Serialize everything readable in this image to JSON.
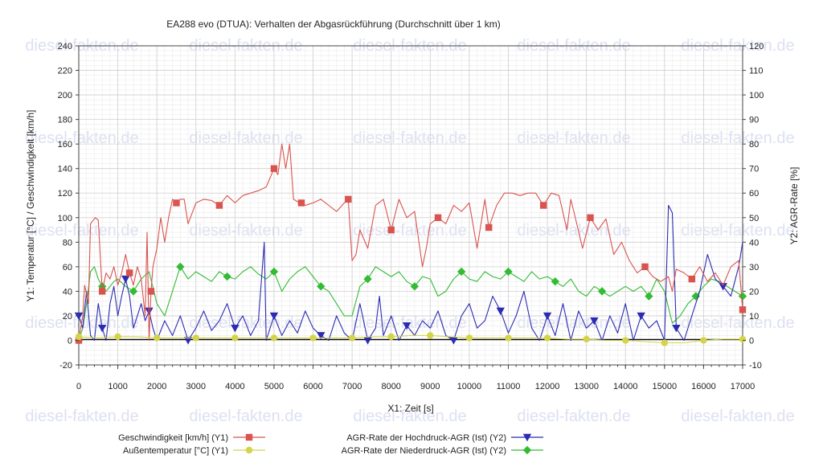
{
  "chart_data": {
    "type": "line",
    "title": "EA288 evo (DTUA): Verhalten der Abgasrückführung (Durchschnitt über 1 km)",
    "xlabel": "X1: Zeit [s]",
    "ylabel_left": "Y1: Temperatur [°C] / Geschwindigkeit [km/h]",
    "ylabel_right": "Y2: AGR-Rate [%]",
    "xlim": [
      0,
      17000
    ],
    "ylim_left": [
      -20,
      240
    ],
    "ylim_right": [
      -10,
      120
    ],
    "x_ticks": [
      0,
      1000,
      2000,
      3000,
      4000,
      5000,
      6000,
      7000,
      8000,
      9000,
      10000,
      11000,
      12000,
      13000,
      14000,
      15000,
      16000,
      17000
    ],
    "y_left_ticks": [
      -20,
      0,
      20,
      40,
      60,
      80,
      100,
      120,
      140,
      160,
      180,
      200,
      220,
      240
    ],
    "y_right_ticks": [
      -10,
      0,
      10,
      20,
      30,
      40,
      50,
      60,
      70,
      80,
      90,
      100,
      110,
      120
    ],
    "grid": true,
    "legend_position": "bottom",
    "watermark": "diesel-fakten.de",
    "series": [
      {
        "name": "Geschwindigkeit [km/h] (Y1)",
        "axis": "Y1",
        "color": "#d9534f",
        "marker": "square",
        "x": [
          0,
          100,
          150,
          250,
          300,
          420,
          500,
          600,
          700,
          800,
          900,
          1000,
          1100,
          1200,
          1300,
          1400,
          1500,
          1600,
          1700,
          1750,
          1800,
          1850,
          1900,
          2000,
          2100,
          2200,
          2300,
          2400,
          2500,
          2600,
          2700,
          2800,
          3000,
          3200,
          3400,
          3600,
          3800,
          4000,
          4200,
          4400,
          4600,
          4800,
          5000,
          5100,
          5200,
          5300,
          5400,
          5500,
          5600,
          5700,
          5800,
          6000,
          6200,
          6400,
          6600,
          6800,
          6900,
          7000,
          7100,
          7200,
          7400,
          7600,
          7800,
          8000,
          8200,
          8400,
          8600,
          8800,
          8900,
          9000,
          9200,
          9400,
          9600,
          9800,
          10000,
          10200,
          10400,
          10500,
          10700,
          10900,
          11100,
          11300,
          11500,
          11700,
          11900,
          12100,
          12300,
          12500,
          12600,
          12700,
          12900,
          13100,
          13300,
          13500,
          13700,
          13900,
          14100,
          14300,
          14500,
          14700,
          14900,
          15100,
          15200,
          15300,
          15500,
          15700,
          15900,
          16100,
          16300,
          16500,
          16700,
          16900,
          17000
        ],
        "values": [
          0,
          20,
          45,
          30,
          95,
          100,
          98,
          40,
          55,
          50,
          60,
          45,
          55,
          70,
          55,
          45,
          60,
          50,
          20,
          88,
          0,
          40,
          60,
          75,
          100,
          80,
          100,
          115,
          112,
          115,
          115,
          95,
          112,
          115,
          114,
          110,
          118,
          112,
          118,
          120,
          122,
          125,
          140,
          135,
          160,
          140,
          160,
          115,
          113,
          112,
          110,
          112,
          115,
          110,
          105,
          112,
          115,
          65,
          70,
          90,
          75,
          110,
          115,
          90,
          115,
          100,
          105,
          60,
          75,
          95,
          100,
          95,
          110,
          105,
          112,
          75,
          115,
          92,
          110,
          120,
          120,
          118,
          120,
          120,
          110,
          120,
          118,
          90,
          115,
          102,
          75,
          100,
          90,
          99,
          70,
          80,
          65,
          55,
          60,
          52,
          48,
          52,
          40,
          58,
          55,
          50,
          60,
          48,
          55,
          45,
          60,
          65,
          25
        ]
      },
      {
        "name": "Außentemperatur [°C] (Y1)",
        "axis": "Y1",
        "color": "#d4d44a",
        "marker": "circle",
        "x": [
          0,
          500,
          1000,
          1500,
          2000,
          2500,
          3000,
          3500,
          4000,
          4500,
          5000,
          5500,
          6000,
          6500,
          7000,
          7500,
          8000,
          8500,
          9000,
          9500,
          10000,
          10500,
          11000,
          11500,
          12000,
          12500,
          13000,
          13500,
          14000,
          14500,
          15000,
          15500,
          16000,
          16500,
          17000
        ],
        "values": [
          3,
          2,
          3,
          3,
          2,
          2,
          2,
          2,
          2,
          2,
          2,
          2,
          2,
          2,
          2,
          3,
          3,
          4,
          4,
          3,
          2,
          2,
          2,
          2,
          2,
          1,
          1,
          0,
          0,
          -1,
          -2,
          -2,
          0,
          1,
          1
        ]
      },
      {
        "name": "AGR-Rate der Hochdruck-AGR (Ist) (Y2)",
        "axis": "Y2",
        "color": "#2b2bb3",
        "marker": "triangle-down",
        "x": [
          0,
          100,
          200,
          300,
          400,
          500,
          600,
          700,
          800,
          900,
          1000,
          1100,
          1200,
          1300,
          1400,
          1500,
          1600,
          1700,
          1800,
          1900,
          2000,
          2200,
          2400,
          2600,
          2800,
          3000,
          3200,
          3400,
          3600,
          3800,
          4000,
          4200,
          4400,
          4600,
          4750,
          4800,
          5000,
          5200,
          5400,
          5600,
          5800,
          6000,
          6200,
          6400,
          6600,
          6800,
          7000,
          7200,
          7400,
          7600,
          7700,
          7800,
          8000,
          8200,
          8400,
          8600,
          8800,
          9000,
          9200,
          9400,
          9600,
          9800,
          10000,
          10200,
          10400,
          10600,
          10800,
          11000,
          11200,
          11400,
          11600,
          11800,
          12000,
          12200,
          12400,
          12600,
          12800,
          13000,
          13200,
          13400,
          13600,
          13800,
          14000,
          14200,
          14400,
          14600,
          14800,
          15000,
          15100,
          15200,
          15300,
          15500,
          15700,
          15900,
          16100,
          16300,
          16500,
          16700,
          16900,
          17000
        ],
        "values": [
          10,
          5,
          20,
          2,
          0,
          15,
          5,
          0,
          15,
          22,
          10,
          18,
          25,
          18,
          5,
          10,
          15,
          8,
          12,
          5,
          0,
          8,
          2,
          10,
          0,
          5,
          12,
          4,
          8,
          15,
          5,
          10,
          2,
          8,
          40,
          0,
          10,
          2,
          8,
          3,
          12,
          5,
          2,
          0,
          10,
          3,
          0,
          15,
          0,
          5,
          18,
          2,
          10,
          0,
          6,
          2,
          8,
          5,
          12,
          2,
          0,
          10,
          15,
          5,
          8,
          18,
          12,
          3,
          10,
          20,
          5,
          0,
          10,
          2,
          15,
          0,
          12,
          5,
          8,
          0,
          10,
          3,
          15,
          0,
          10,
          5,
          8,
          0,
          55,
          52,
          5,
          0,
          10,
          20,
          35,
          25,
          22,
          18,
          30,
          40
        ]
      },
      {
        "name": "AGR-Rate der Niederdruck-AGR (Ist) (Y2)",
        "axis": "Y2",
        "color": "#33bb33",
        "marker": "diamond",
        "x": [
          0,
          100,
          200,
          300,
          400,
          500,
          600,
          700,
          800,
          900,
          1000,
          1200,
          1400,
          1600,
          1800,
          2000,
          2200,
          2400,
          2600,
          2800,
          3000,
          3200,
          3400,
          3600,
          3800,
          4000,
          4200,
          4400,
          4600,
          4800,
          5000,
          5200,
          5400,
          5600,
          5800,
          6000,
          6200,
          6400,
          6600,
          6800,
          7000,
          7200,
          7400,
          7600,
          7800,
          8000,
          8200,
          8400,
          8600,
          8800,
          9000,
          9200,
          9400,
          9600,
          9800,
          10000,
          10200,
          10400,
          10600,
          10800,
          11000,
          11200,
          11400,
          11600,
          11800,
          12000,
          12200,
          12400,
          12600,
          12800,
          13000,
          13200,
          13400,
          13600,
          13800,
          14000,
          14200,
          14400,
          14600,
          14800,
          15000,
          15200,
          15400,
          15600,
          15800,
          16000,
          16200,
          16400,
          16600,
          16800,
          17000
        ],
        "values": [
          0,
          5,
          15,
          28,
          30,
          25,
          22,
          20,
          22,
          24,
          25,
          22,
          20,
          25,
          28,
          15,
          10,
          20,
          30,
          25,
          28,
          26,
          24,
          28,
          26,
          25,
          28,
          30,
          27,
          25,
          28,
          20,
          25,
          28,
          30,
          26,
          22,
          20,
          15,
          10,
          10,
          22,
          25,
          30,
          28,
          26,
          28,
          24,
          22,
          26,
          25,
          18,
          20,
          25,
          28,
          25,
          24,
          28,
          26,
          25,
          28,
          26,
          24,
          28,
          25,
          26,
          24,
          22,
          25,
          20,
          18,
          22,
          20,
          18,
          20,
          22,
          20,
          22,
          18,
          25,
          20,
          7,
          10,
          15,
          18,
          22,
          25,
          24,
          22,
          20,
          18
        ]
      }
    ]
  }
}
